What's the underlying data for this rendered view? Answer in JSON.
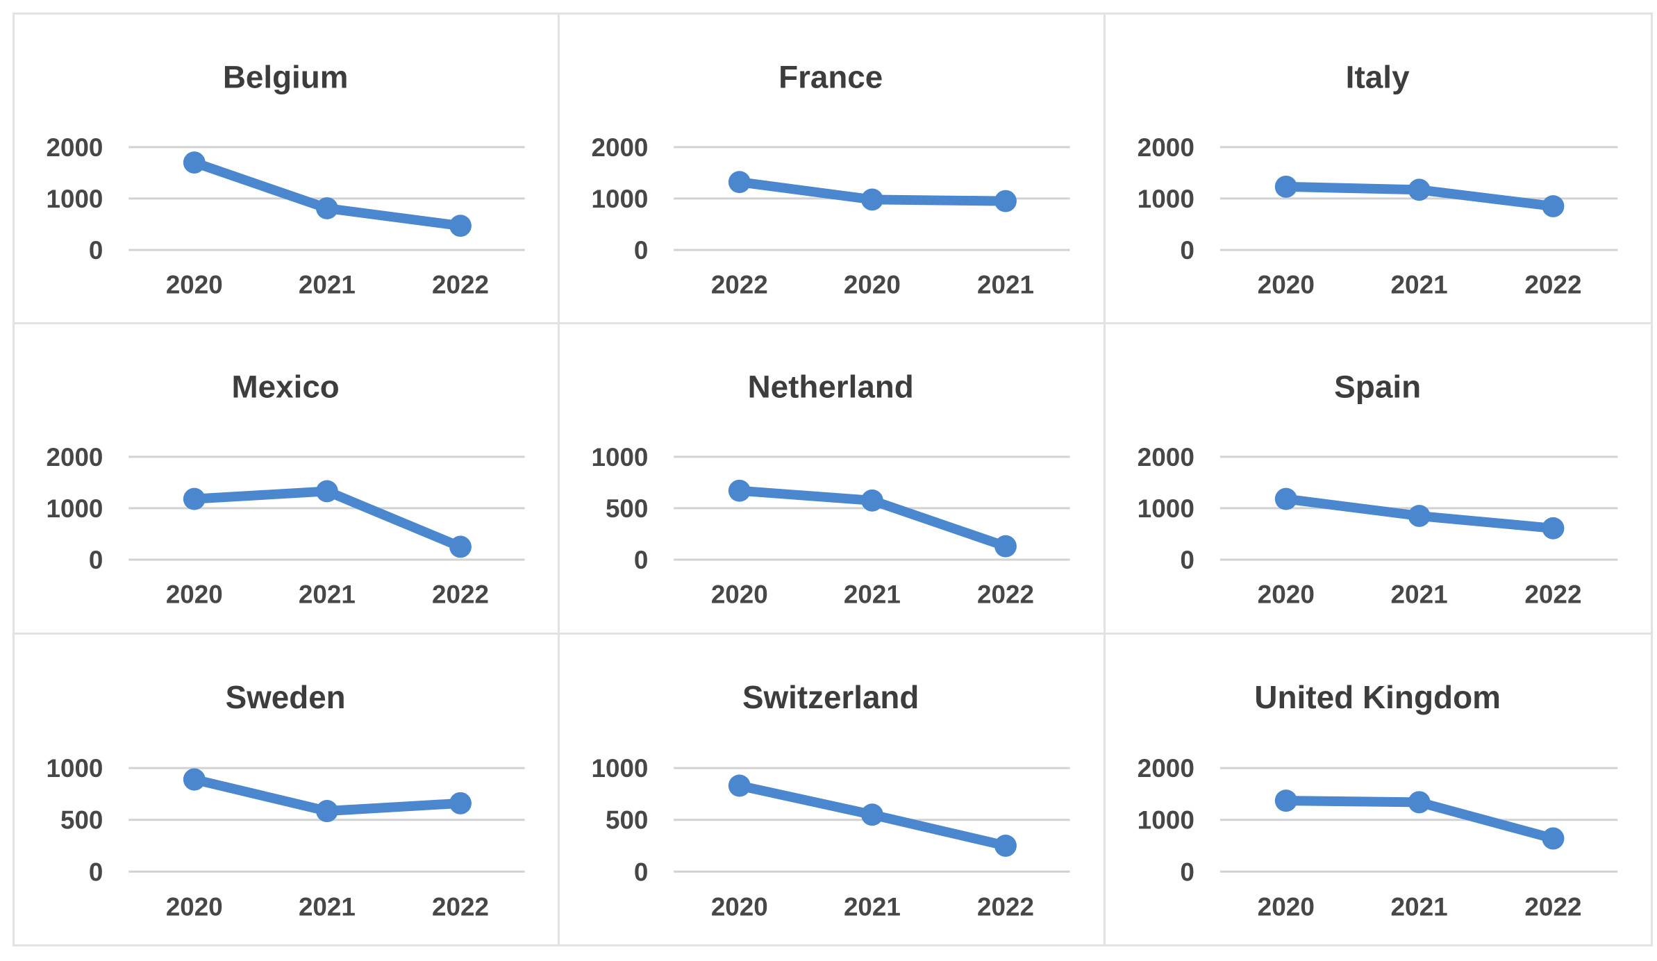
{
  "figure": {
    "kind": "small-multiples-line-charts",
    "panel_count": 9
  },
  "style": {
    "accent": "#4a87ce",
    "gridline_color": "#d2d2d2",
    "panel_border_color": "#e2e2e4",
    "title_color": "#3d3d3d",
    "tick_color": "#474747",
    "background": "#ffffff"
  },
  "chart_data": [
    {
      "type": "line",
      "title": "Belgium",
      "categories": [
        "2020",
        "2021",
        "2022"
      ],
      "values": [
        1700,
        810,
        470
      ],
      "yticks": [
        0,
        1000,
        2000
      ],
      "ylim": [
        0,
        2000
      ],
      "grid": true,
      "legend": false
    },
    {
      "type": "line",
      "title": "France",
      "categories": [
        "2022",
        "2020",
        "2021"
      ],
      "values": [
        1320,
        980,
        950
      ],
      "yticks": [
        0,
        1000,
        2000
      ],
      "ylim": [
        0,
        2000
      ],
      "grid": true,
      "legend": false
    },
    {
      "type": "line",
      "title": "Italy",
      "categories": [
        "2020",
        "2021",
        "2022"
      ],
      "values": [
        1230,
        1170,
        850
      ],
      "yticks": [
        0,
        1000,
        2000
      ],
      "ylim": [
        0,
        2000
      ],
      "grid": true,
      "legend": false
    },
    {
      "type": "line",
      "title": "Mexico",
      "categories": [
        "2020",
        "2021",
        "2022"
      ],
      "values": [
        1180,
        1330,
        250
      ],
      "yticks": [
        0,
        1000,
        2000
      ],
      "ylim": [
        0,
        2000
      ],
      "grid": true,
      "legend": false
    },
    {
      "type": "line",
      "title": "Netherland",
      "categories": [
        "2020",
        "2021",
        "2022"
      ],
      "values": [
        670,
        575,
        130
      ],
      "yticks": [
        0,
        500,
        1000
      ],
      "ylim": [
        0,
        1000
      ],
      "grid": true,
      "legend": false
    },
    {
      "type": "line",
      "title": "Spain",
      "categories": [
        "2020",
        "2021",
        "2022"
      ],
      "values": [
        1180,
        850,
        610
      ],
      "yticks": [
        0,
        1000,
        2000
      ],
      "ylim": [
        0,
        2000
      ],
      "grid": true,
      "legend": false
    },
    {
      "type": "line",
      "title": "Sweden",
      "categories": [
        "2020",
        "2021",
        "2022"
      ],
      "values": [
        890,
        585,
        660
      ],
      "yticks": [
        0,
        500,
        1000
      ],
      "ylim": [
        0,
        1000
      ],
      "grid": true,
      "legend": false
    },
    {
      "type": "line",
      "title": "Switzerland",
      "categories": [
        "2020",
        "2021",
        "2022"
      ],
      "values": [
        830,
        550,
        250
      ],
      "yticks": [
        0,
        500,
        1000
      ],
      "ylim": [
        0,
        1000
      ],
      "grid": true,
      "legend": false
    },
    {
      "type": "line",
      "title": "United Kingdom",
      "categories": [
        "2020",
        "2021",
        "2022"
      ],
      "values": [
        1370,
        1340,
        640
      ],
      "yticks": [
        0,
        1000,
        2000
      ],
      "ylim": [
        0,
        2000
      ],
      "grid": true,
      "legend": false
    }
  ]
}
